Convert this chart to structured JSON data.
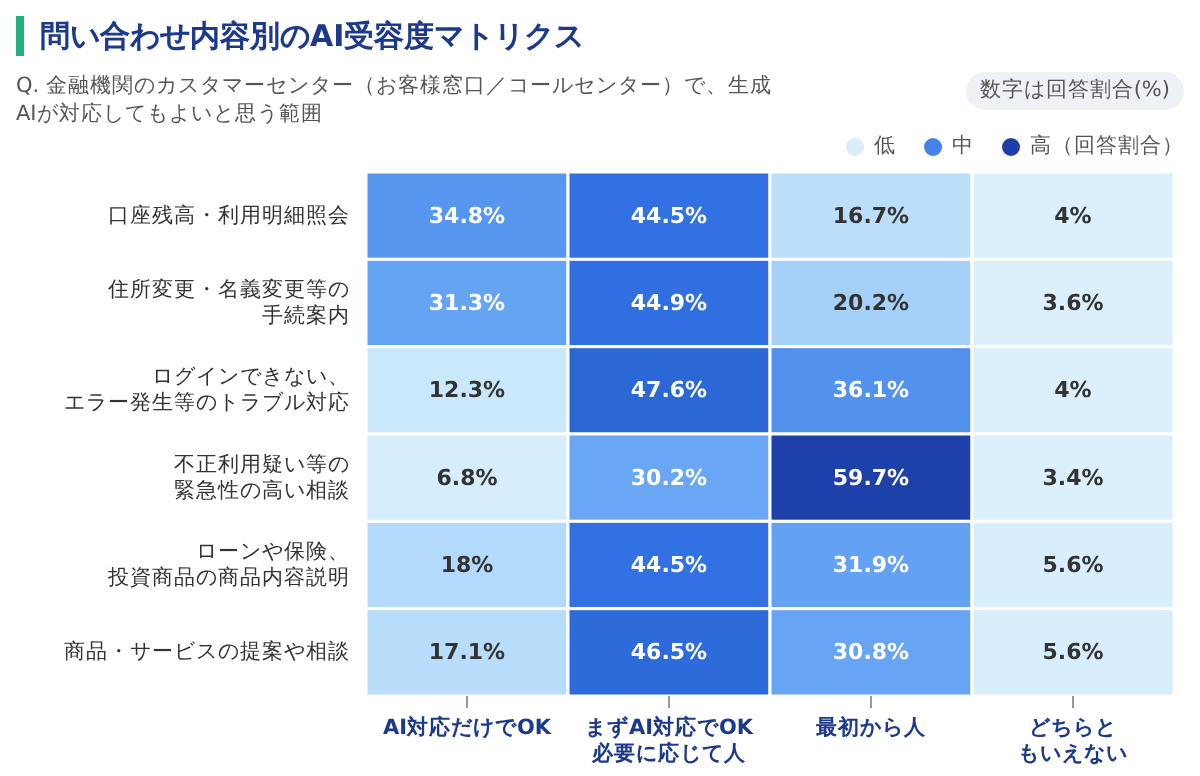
{
  "chart_data": {
    "type": "heatmap",
    "title": "問い合わせ内容別のAI受容度マトリクス",
    "subtitle": "Q. 金融機関のカスタマーセンター（お客様窓口／コールセンター）で、生成AIが対応してもよいと思う範囲",
    "annotations": [
      "数字は回答割合(%)",
      "低",
      "中",
      "高（回答割合）"
    ],
    "categories": [
      "AI対応だけでOK",
      "まずAI対応でOK必要に応じて人",
      "最初から人",
      "どちらともいえない"
    ],
    "y_categories": [
      "口座残高・利用明細照会",
      "住所変更・名義変更等の手続案内",
      "ログインできない、エラー発生等のトラブル対応",
      "不正利用疑い等の緊急性の高い相談",
      "ローンや保険、投資商品の商品内容説明",
      "商品・サービスの提案や相談"
    ],
    "cells": [
      [
        34.8,
        44.5,
        16.7,
        4
      ],
      [
        31.3,
        44.9,
        20.2,
        3.6
      ],
      [
        12.3,
        47.6,
        36.1,
        4
      ],
      [
        6.8,
        30.2,
        59.7,
        3.4
      ],
      [
        18,
        44.5,
        31.9,
        5.6
      ],
      [
        17.1,
        46.5,
        30.8,
        5.6
      ]
    ],
    "cell_labels": [
      [
        "34.8%",
        "44.5%",
        "16.7%",
        "4%"
      ],
      [
        "31.3%",
        "44.9%",
        "20.2%",
        "3.6%"
      ],
      [
        "12.3%",
        "47.6%",
        "36.1%",
        "4%"
      ],
      [
        "6.8%",
        "30.2%",
        "59.7%",
        "3.4%"
      ],
      [
        "18%",
        "44.5%",
        "31.9%",
        "5.6%"
      ],
      [
        "17.1%",
        "46.5%",
        "30.8%",
        "5.6%"
      ]
    ]
  }
}
